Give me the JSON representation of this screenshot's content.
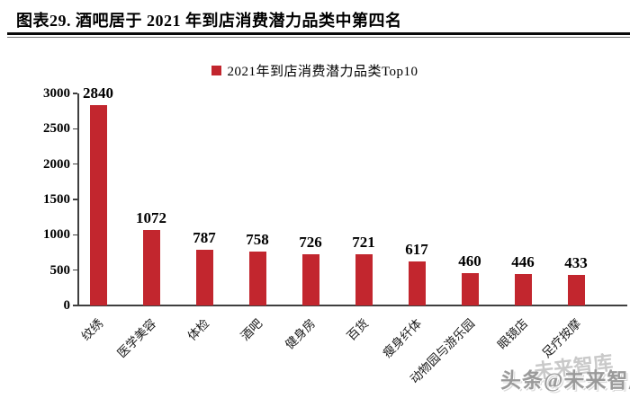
{
  "title": "图表29. 酒吧居于 2021 年到店消费潜力品类中第四名",
  "legend": {
    "label": "2021年到店消费潜力品类Top10",
    "marker_color": "#C2262E"
  },
  "chart_data": {
    "type": "bar",
    "categories": [
      "纹绣",
      "医学美容",
      "体检",
      "酒吧",
      "健身房",
      "百货",
      "瘦身纤体",
      "动物园与游乐园",
      "眼镜店",
      "足疗按摩"
    ],
    "values": [
      2840,
      1072,
      787,
      758,
      726,
      721,
      617,
      460,
      446,
      433
    ],
    "title": "",
    "xlabel": "",
    "ylabel": "",
    "ylim": [
      0,
      3000
    ],
    "yticks": [
      0,
      500,
      1000,
      1500,
      2000,
      2500,
      3000
    ],
    "bar_color": "#C2262E",
    "grid": false,
    "value_labels": true,
    "legend_entries": [
      "2021年到店消费潜力品类Top10"
    ],
    "legend_position": "top-center"
  },
  "watermark": {
    "main": "头条@未来智库",
    "ghost": "未来智库"
  }
}
